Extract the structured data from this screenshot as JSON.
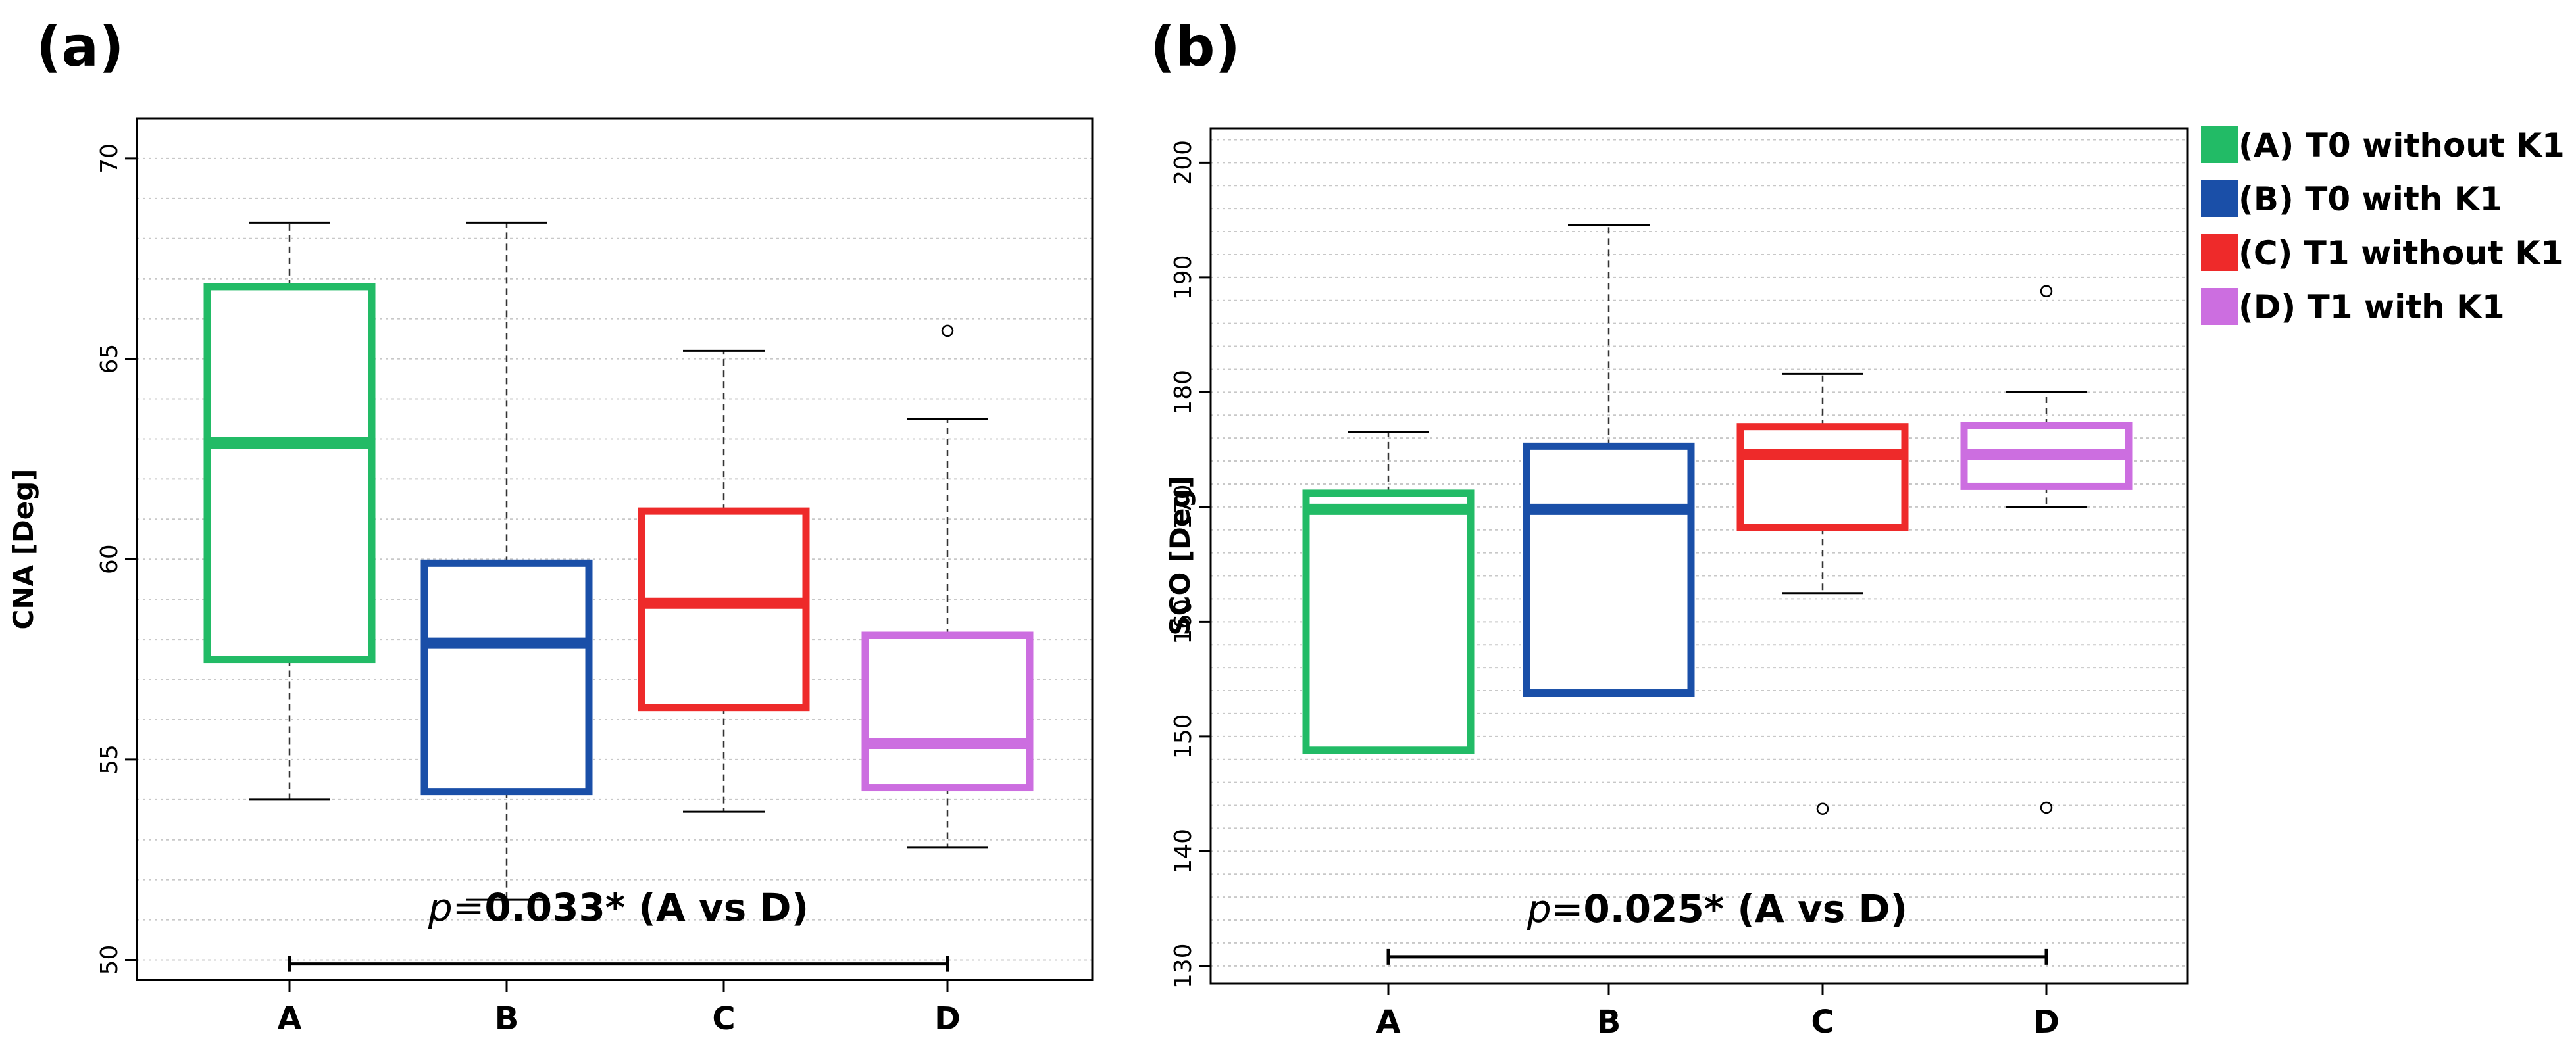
{
  "chart_data": [
    {
      "type": "box",
      "panel_label": "(a)",
      "ylabel": "CNA [Deg]",
      "ylim": [
        49.5,
        71.0
      ],
      "yticks": [
        50,
        55,
        60,
        65,
        70
      ],
      "ytick_labels": [
        "50",
        "55",
        "60",
        "65",
        "70"
      ],
      "categories": [
        "A",
        "B",
        "C",
        "D"
      ],
      "boxes": [
        {
          "cat": "A",
          "whisker_low": 54.0,
          "q1": 57.5,
          "median": 62.9,
          "q3": 66.8,
          "whisker_high": 68.4,
          "outliers": [],
          "color": "#22bb66"
        },
        {
          "cat": "B",
          "whisker_low": 51.5,
          "q1": 54.2,
          "median": 57.9,
          "q3": 59.9,
          "whisker_high": 68.4,
          "outliers": [],
          "color": "#1a4fa8"
        },
        {
          "cat": "C",
          "whisker_low": 53.7,
          "q1": 56.3,
          "median": 58.9,
          "q3": 61.2,
          "whisker_high": 65.2,
          "outliers": [],
          "color": "#ee2a2a"
        },
        {
          "cat": "D",
          "whisker_low": 52.8,
          "q1": 54.3,
          "median": 55.4,
          "q3": 58.1,
          "whisker_high": 63.5,
          "outliers": [
            65.7
          ],
          "color": "#cc6ee0"
        }
      ],
      "annotation": {
        "prefix": "p",
        "eq": "=",
        "value": "0.033*",
        "suffix": " (A vs D)",
        "from": "A",
        "to": "D",
        "y": 49.9
      }
    },
    {
      "type": "box",
      "panel_label": "(b)",
      "ylabel": "SCO [Deg]",
      "ylim": [
        128.5,
        203.0
      ],
      "yticks": [
        130,
        140,
        150,
        160,
        170,
        180,
        190,
        200
      ],
      "ytick_labels": [
        "130",
        "140",
        "150",
        "160",
        "170",
        "180",
        "190",
        "200"
      ],
      "categories": [
        "A",
        "B",
        "C",
        "D"
      ],
      "boxes": [
        {
          "cat": "A",
          "whisker_low": 148.8,
          "q1": 148.8,
          "median": 169.8,
          "q3": 171.2,
          "whisker_high": 176.5,
          "outliers": [],
          "color": "#22bb66"
        },
        {
          "cat": "B",
          "whisker_low": 153.8,
          "q1": 153.8,
          "median": 169.8,
          "q3": 175.3,
          "whisker_high": 194.6,
          "outliers": [],
          "color": "#1a4fa8"
        },
        {
          "cat": "C",
          "whisker_low": 162.5,
          "q1": 168.2,
          "median": 174.6,
          "q3": 177.0,
          "whisker_high": 181.6,
          "outliers": [
            143.7
          ],
          "color": "#ee2a2a"
        },
        {
          "cat": "D",
          "whisker_low": 170.0,
          "q1": 171.8,
          "median": 174.6,
          "q3": 177.1,
          "whisker_high": 180.0,
          "outliers": [
            188.8,
            143.8
          ],
          "color": "#cc6ee0"
        }
      ],
      "annotation": {
        "prefix": "p",
        "eq": "=",
        "value": "0.025*",
        "suffix": " (A vs D)",
        "from": "A",
        "to": "D",
        "y": 130.8
      }
    }
  ],
  "legend": {
    "position": "right",
    "entries": [
      {
        "label": "(A) T0 without K1",
        "color": "#22bb66"
      },
      {
        "label": "(B) T0 with K1",
        "color": "#1a4fa8"
      },
      {
        "label": "(C) T1 without K1",
        "color": "#ee2a2a"
      },
      {
        "label": "(D) T1 with K1",
        "color": "#cc6ee0"
      }
    ]
  }
}
